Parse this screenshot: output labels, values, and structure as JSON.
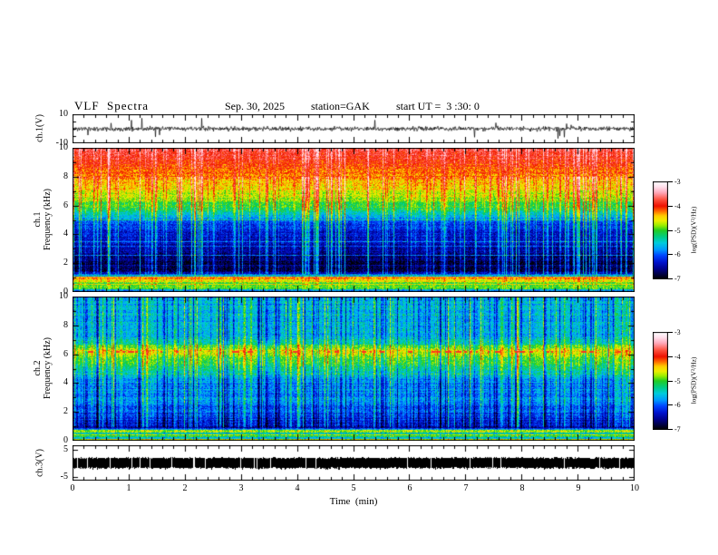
{
  "title": {
    "main": "VLF  Spectra",
    "date": "Sep. 30, 2025",
    "station": "station=GAK",
    "start_ut": "start UT =  3 :30: 0"
  },
  "x_axis": {
    "label": "Time  (min)",
    "tick_labels": [
      "0",
      "1",
      "2",
      "3",
      "4",
      "5",
      "6",
      "7",
      "8",
      "9",
      "10"
    ],
    "range": [
      0,
      10
    ],
    "minor_step": 0.2
  },
  "panels": {
    "ch1_wave": {
      "ylabel": "ch.1(V)",
      "ytick_labels": [
        "10",
        "-10"
      ],
      "yrange": [
        -10,
        10
      ]
    },
    "ch1_spec": {
      "ylabel_line1": "ch.1",
      "ylabel_line2": "Frequency  (kHz)",
      "ytick_labels": [
        "10",
        "8",
        "6",
        "4",
        "2",
        "0"
      ],
      "yrange": [
        0,
        10
      ]
    },
    "ch2_spec": {
      "ylabel_line1": "ch.2",
      "ylabel_line2": "Frequency  (kHz)",
      "ytick_labels": [
        "10",
        "8",
        "6",
        "4",
        "2",
        "0"
      ],
      "yrange": [
        0,
        10
      ]
    },
    "ch3_wave": {
      "ylabel": "ch.3(V)",
      "ytick_labels": [
        "5",
        "-5"
      ],
      "yrange": [
        -6.5,
        6.5
      ]
    }
  },
  "colorbar": {
    "label": "log(PSD)(V²/Hz)",
    "tick_labels": [
      "-3",
      "-4",
      "-5",
      "-6",
      "-7"
    ],
    "range": [
      -3,
      -7
    ],
    "stops": [
      [
        0.0,
        "#ffffff"
      ],
      [
        0.05,
        "#ffe2ee"
      ],
      [
        0.11,
        "#ffaabb"
      ],
      [
        0.18,
        "#ff5544"
      ],
      [
        0.25,
        "#ee1100"
      ],
      [
        0.3,
        "#ff6600"
      ],
      [
        0.35,
        "#ffcc00"
      ],
      [
        0.4,
        "#eeee00"
      ],
      [
        0.45,
        "#99ee00"
      ],
      [
        0.5,
        "#22cc22"
      ],
      [
        0.57,
        "#00cc88"
      ],
      [
        0.63,
        "#00ccdd"
      ],
      [
        0.7,
        "#0099ff"
      ],
      [
        0.76,
        "#0044ff"
      ],
      [
        0.83,
        "#0011cc"
      ],
      [
        0.9,
        "#000088"
      ],
      [
        1.0,
        "#000000"
      ]
    ]
  },
  "chart_data": [
    {
      "type": "line",
      "name": "ch.1(V) time series",
      "xlim": [
        0,
        10
      ],
      "ylim": [
        -10,
        10
      ],
      "description": "broadband noisy voltage trace centered at 0 V with sparse impulsive spikes to about ±8 V",
      "signal": {
        "baseline": 0,
        "noise_amp": 1.5,
        "spike_rate": 0.012,
        "spike_min": 2,
        "spike_max": 8
      },
      "seed": 11
    },
    {
      "type": "heatmap",
      "name": "ch.1 VLF spectrogram",
      "xlim": [
        0,
        10
      ],
      "ylim": [
        0,
        10
      ],
      "zlim": [
        -7,
        -3
      ],
      "zlabel": "log(PSD)(V²/Hz)",
      "profile": [
        [
          0.0,
          -6.1
        ],
        [
          0.12,
          -5.7
        ],
        [
          0.22,
          -5.15
        ],
        [
          0.35,
          -5.0
        ],
        [
          0.5,
          -4.85
        ],
        [
          0.62,
          -4.95
        ],
        [
          0.72,
          -4.7
        ],
        [
          0.82,
          -4.5
        ],
        [
          0.9,
          -4.35
        ],
        [
          0.98,
          -4.0
        ],
        [
          1.04,
          -4.6
        ],
        [
          1.1,
          -5.6
        ],
        [
          1.2,
          -6.4
        ],
        [
          1.5,
          -6.75
        ],
        [
          2.0,
          -6.85
        ],
        [
          2.5,
          -6.65
        ],
        [
          3.0,
          -6.5
        ],
        [
          3.6,
          -6.4
        ],
        [
          4.2,
          -6.3
        ],
        [
          4.7,
          -6.15
        ],
        [
          5.0,
          -5.95
        ],
        [
          5.4,
          -5.5
        ],
        [
          5.8,
          -5.15
        ],
        [
          6.2,
          -4.95
        ],
        [
          6.8,
          -4.65
        ],
        [
          7.4,
          -4.45
        ],
        [
          8.0,
          -4.25
        ],
        [
          8.6,
          -4.1
        ],
        [
          9.2,
          -3.95
        ],
        [
          10.0,
          -3.75
        ]
      ],
      "hlines": [
        {
          "f": 5.05,
          "dv": 0.55
        },
        {
          "f": 3.55,
          "dv": 0.6
        },
        {
          "f": 3.2,
          "dv": 0.5
        },
        {
          "f": 2.55,
          "dv": 0.55
        },
        {
          "f": 1.9,
          "dv": 0.4
        },
        {
          "f": 1.17,
          "dv": 1.0
        }
      ],
      "streaks": {
        "prob": 0.2,
        "amp": 1.15,
        "bipolar": false,
        "col_noise": 0.14,
        "top_f": 8,
        "top_weight": 0.5
      },
      "noise": 0.3,
      "row_noise": 0.12,
      "row_noise_low": 0.4,
      "low_f": 1.25,
      "seed": 42
    },
    {
      "type": "heatmap",
      "name": "ch.2 VLF spectrogram",
      "xlim": [
        0,
        10
      ],
      "ylim": [
        0,
        10
      ],
      "zlim": [
        -7,
        -3
      ],
      "zlabel": "log(PSD)(V²/Hz)",
      "profile": [
        [
          0.0,
          -6.6
        ],
        [
          0.08,
          -4.3
        ],
        [
          0.16,
          -5.8
        ],
        [
          0.28,
          -5.2
        ],
        [
          0.42,
          -5.05
        ],
        [
          0.55,
          -5.3
        ],
        [
          0.68,
          -4.15
        ],
        [
          0.78,
          -6.1
        ],
        [
          0.95,
          -6.45
        ],
        [
          1.3,
          -6.25
        ],
        [
          1.8,
          -6.05
        ],
        [
          2.4,
          -5.9
        ],
        [
          3.0,
          -5.8
        ],
        [
          3.6,
          -5.75
        ],
        [
          4.2,
          -5.8
        ],
        [
          4.7,
          -5.45
        ],
        [
          5.1,
          -5.1
        ],
        [
          5.5,
          -5.0
        ],
        [
          5.8,
          -4.95
        ],
        [
          6.05,
          -4.6
        ],
        [
          6.25,
          -4.55
        ],
        [
          6.5,
          -4.9
        ],
        [
          6.8,
          -5.35
        ],
        [
          7.3,
          -5.6
        ],
        [
          8.0,
          -5.6
        ],
        [
          9.0,
          -5.55
        ],
        [
          10.0,
          -5.65
        ]
      ],
      "hlines": [
        {
          "f": 4.68,
          "dv": 0.45
        },
        {
          "f": 2.9,
          "dv": 0.25
        }
      ],
      "dashline": {
        "f": 6.2,
        "v": -3.85,
        "prob": 0.09
      },
      "streaks": {
        "prob": 0.3,
        "amp": 0.75,
        "bipolar": true,
        "col_noise": 0.18
      },
      "noise": 0.3,
      "row_noise": 0.15,
      "row_noise_low": 0.4,
      "low_f": 0.95,
      "seed": 77
    },
    {
      "type": "line",
      "name": "ch.3(V) time series",
      "xlim": [
        0,
        10
      ],
      "ylim": [
        -6.5,
        6.5
      ],
      "description": "flat saturated black band at 0 V for the whole interval",
      "signal": {
        "band_center": 0,
        "band_halfwidth": 0.55,
        "gap_rate": 0.04
      },
      "seed": 5
    }
  ]
}
